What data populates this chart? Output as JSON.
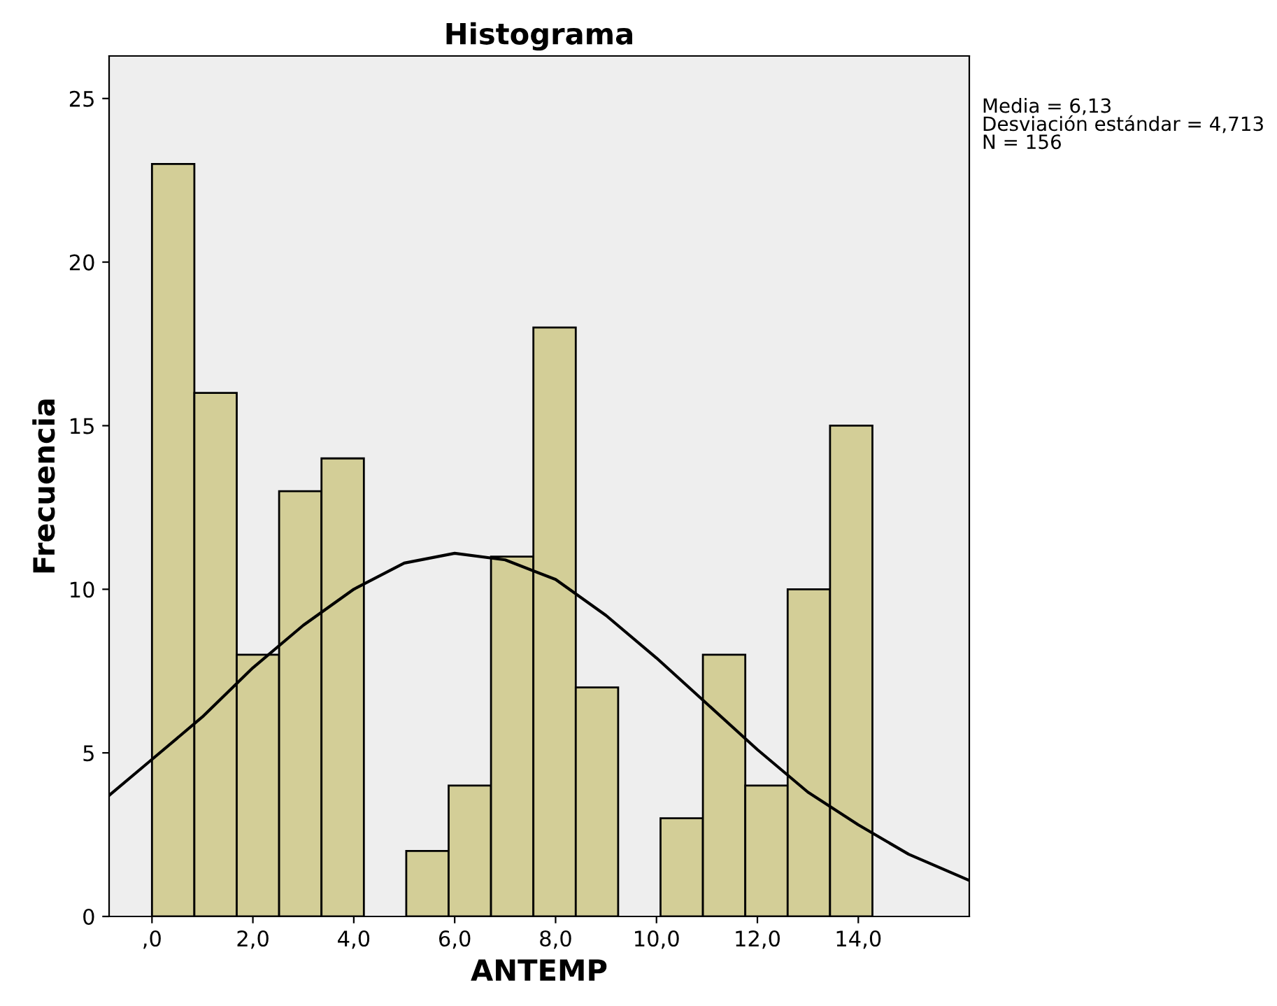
{
  "chart_data": {
    "type": "histogram",
    "title": "Histograma",
    "xlabel": "ANTEMP",
    "ylabel": "Frecuencia",
    "bins": [
      0,
      0.84,
      1.68,
      2.52,
      3.36,
      4.2,
      5.04,
      5.88,
      6.72,
      7.56,
      8.4,
      9.24,
      10.08,
      10.92,
      11.76,
      12.6,
      13.44,
      14.28
    ],
    "values": [
      23,
      16,
      8,
      13,
      14,
      0,
      2,
      4,
      11,
      18,
      7,
      0,
      3,
      8,
      4,
      10,
      15
    ],
    "color": "#d3ce97",
    "series": [
      {
        "type": "line",
        "color": "#000000",
        "x": [
          -0.85,
          0,
          1,
          2,
          3,
          4,
          5,
          6,
          7,
          8,
          9,
          10,
          11,
          12,
          13,
          14,
          15,
          16.2
        ],
        "values": [
          3.7,
          4.8,
          6.1,
          7.6,
          8.9,
          10.0,
          10.8,
          11.1,
          10.9,
          10.3,
          9.2,
          7.9,
          6.5,
          5.1,
          3.8,
          2.8,
          1.9,
          1.1
        ]
      }
    ],
    "xlim": [
      -0.85,
      16.2
    ],
    "ylim": [
      0,
      26.3
    ],
    "xticks": [
      {
        "value": 0,
        "label": ",0"
      },
      {
        "value": 2,
        "label": "2,0"
      },
      {
        "value": 4,
        "label": "4,0"
      },
      {
        "value": 6,
        "label": "6,0"
      },
      {
        "value": 8,
        "label": "8,0"
      },
      {
        "value": 10,
        "label": "10,0"
      },
      {
        "value": 12,
        "label": "12,0"
      },
      {
        "value": 14,
        "label": "14,0"
      }
    ],
    "yticks": [
      0,
      5,
      10,
      15,
      20,
      25
    ],
    "grid": false,
    "legend": false,
    "annotations": [
      "Media = 6,13\nDesviación estándar = 4,713\nN = 156"
    ]
  }
}
